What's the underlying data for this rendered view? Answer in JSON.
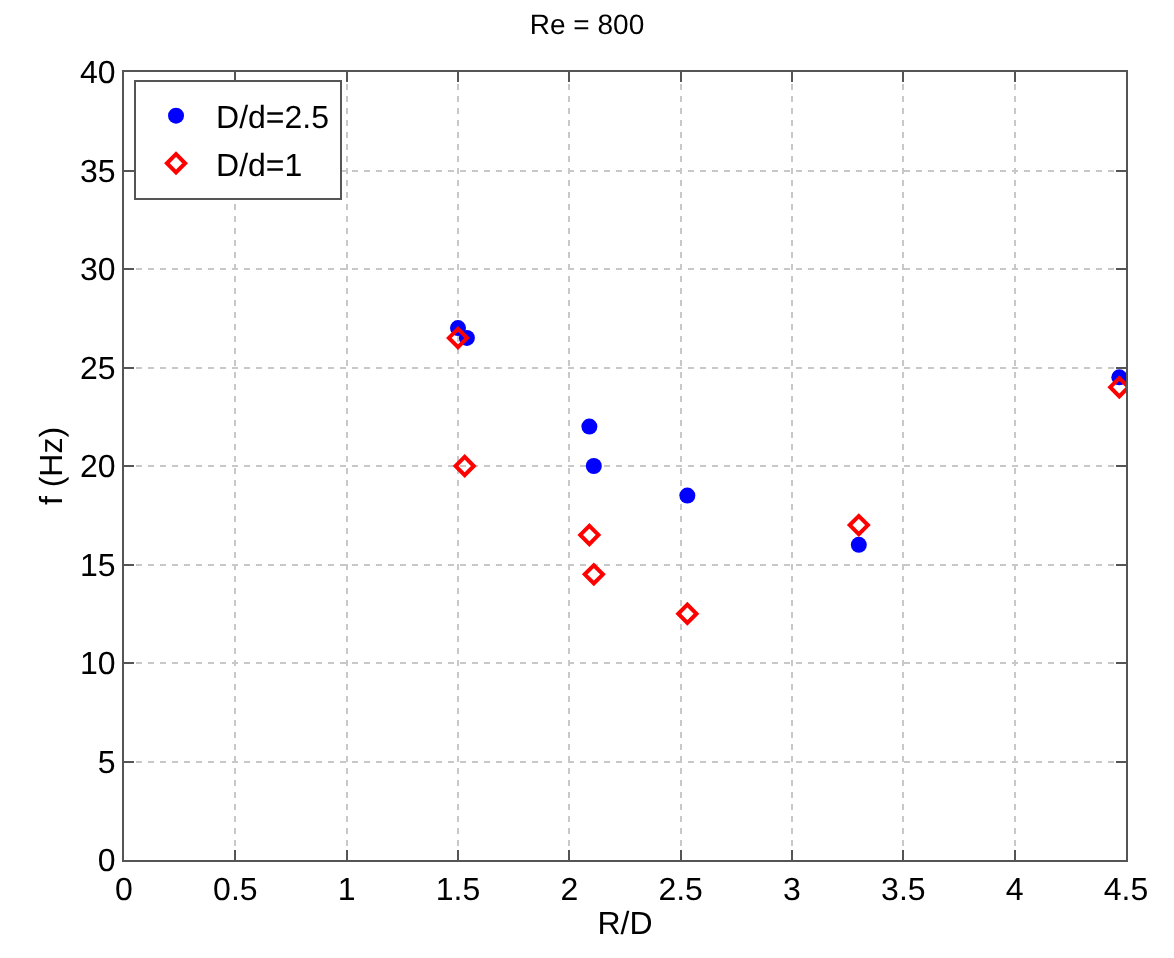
{
  "chart_data": {
    "type": "scatter",
    "title": "Re = 800",
    "xlabel": "R/D",
    "ylabel": "f (Hz)",
    "xlim": [
      0,
      4.5
    ],
    "xticks": [
      0,
      0.5,
      1,
      1.5,
      2,
      2.5,
      3,
      3.5,
      4,
      4.5
    ],
    "ylim": [
      0,
      40
    ],
    "yticks": [
      0,
      5,
      10,
      15,
      20,
      25,
      30,
      35,
      40
    ],
    "grid": true,
    "legend": "top left",
    "series": [
      {
        "name": "D/d=2.5",
        "color": "#0000ff",
        "marker": "circle",
        "x": [
          1.5,
          1.54,
          2.09,
          2.11,
          2.53,
          3.3,
          4.47
        ],
        "values": [
          27,
          26.5,
          22,
          20,
          18.5,
          16,
          24.5
        ]
      },
      {
        "name": "D/d=1",
        "color": "#ff0000",
        "marker": "diamond",
        "x": [
          1.5,
          1.53,
          2.09,
          2.11,
          2.53,
          3.3,
          4.47
        ],
        "values": [
          26.5,
          20,
          16.5,
          14.5,
          12.5,
          17,
          24
        ]
      }
    ]
  }
}
